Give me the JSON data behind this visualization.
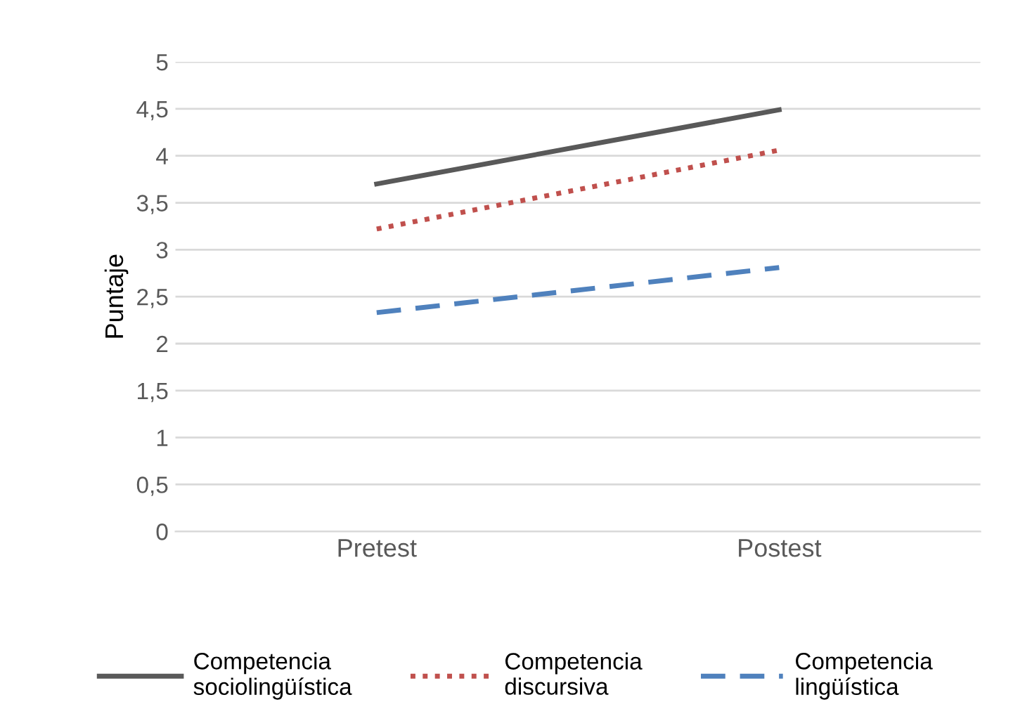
{
  "chart_data": {
    "type": "line",
    "ylabel": "Puntaje",
    "categories": [
      "Pretest",
      "Postest"
    ],
    "series": [
      {
        "name": "Competencia sociolingüística",
        "color": "#595959",
        "line_style": "solid",
        "values": [
          3.7,
          4.49
        ]
      },
      {
        "name": "Competencia discursiva",
        "color": "#c0504d",
        "line_style": "dotted",
        "values": [
          3.22,
          4.06
        ]
      },
      {
        "name": "Competencia lingüística",
        "color": "#4f81bd",
        "line_style": "dashed",
        "values": [
          2.33,
          2.81
        ]
      }
    ],
    "ylim": [
      0,
      5
    ],
    "yticks": [
      0,
      {
        "value": 0.5,
        "label": "0,5"
      },
      1,
      {
        "value": 1.5,
        "label": "1,5"
      },
      2,
      {
        "value": 2.5,
        "label": "2,5"
      },
      3,
      {
        "value": 3.5,
        "label": "3,5"
      },
      4,
      {
        "value": 4.5,
        "label": "4,5"
      },
      5
    ],
    "grid": "y",
    "legend": "bottom",
    "marker": "none"
  }
}
